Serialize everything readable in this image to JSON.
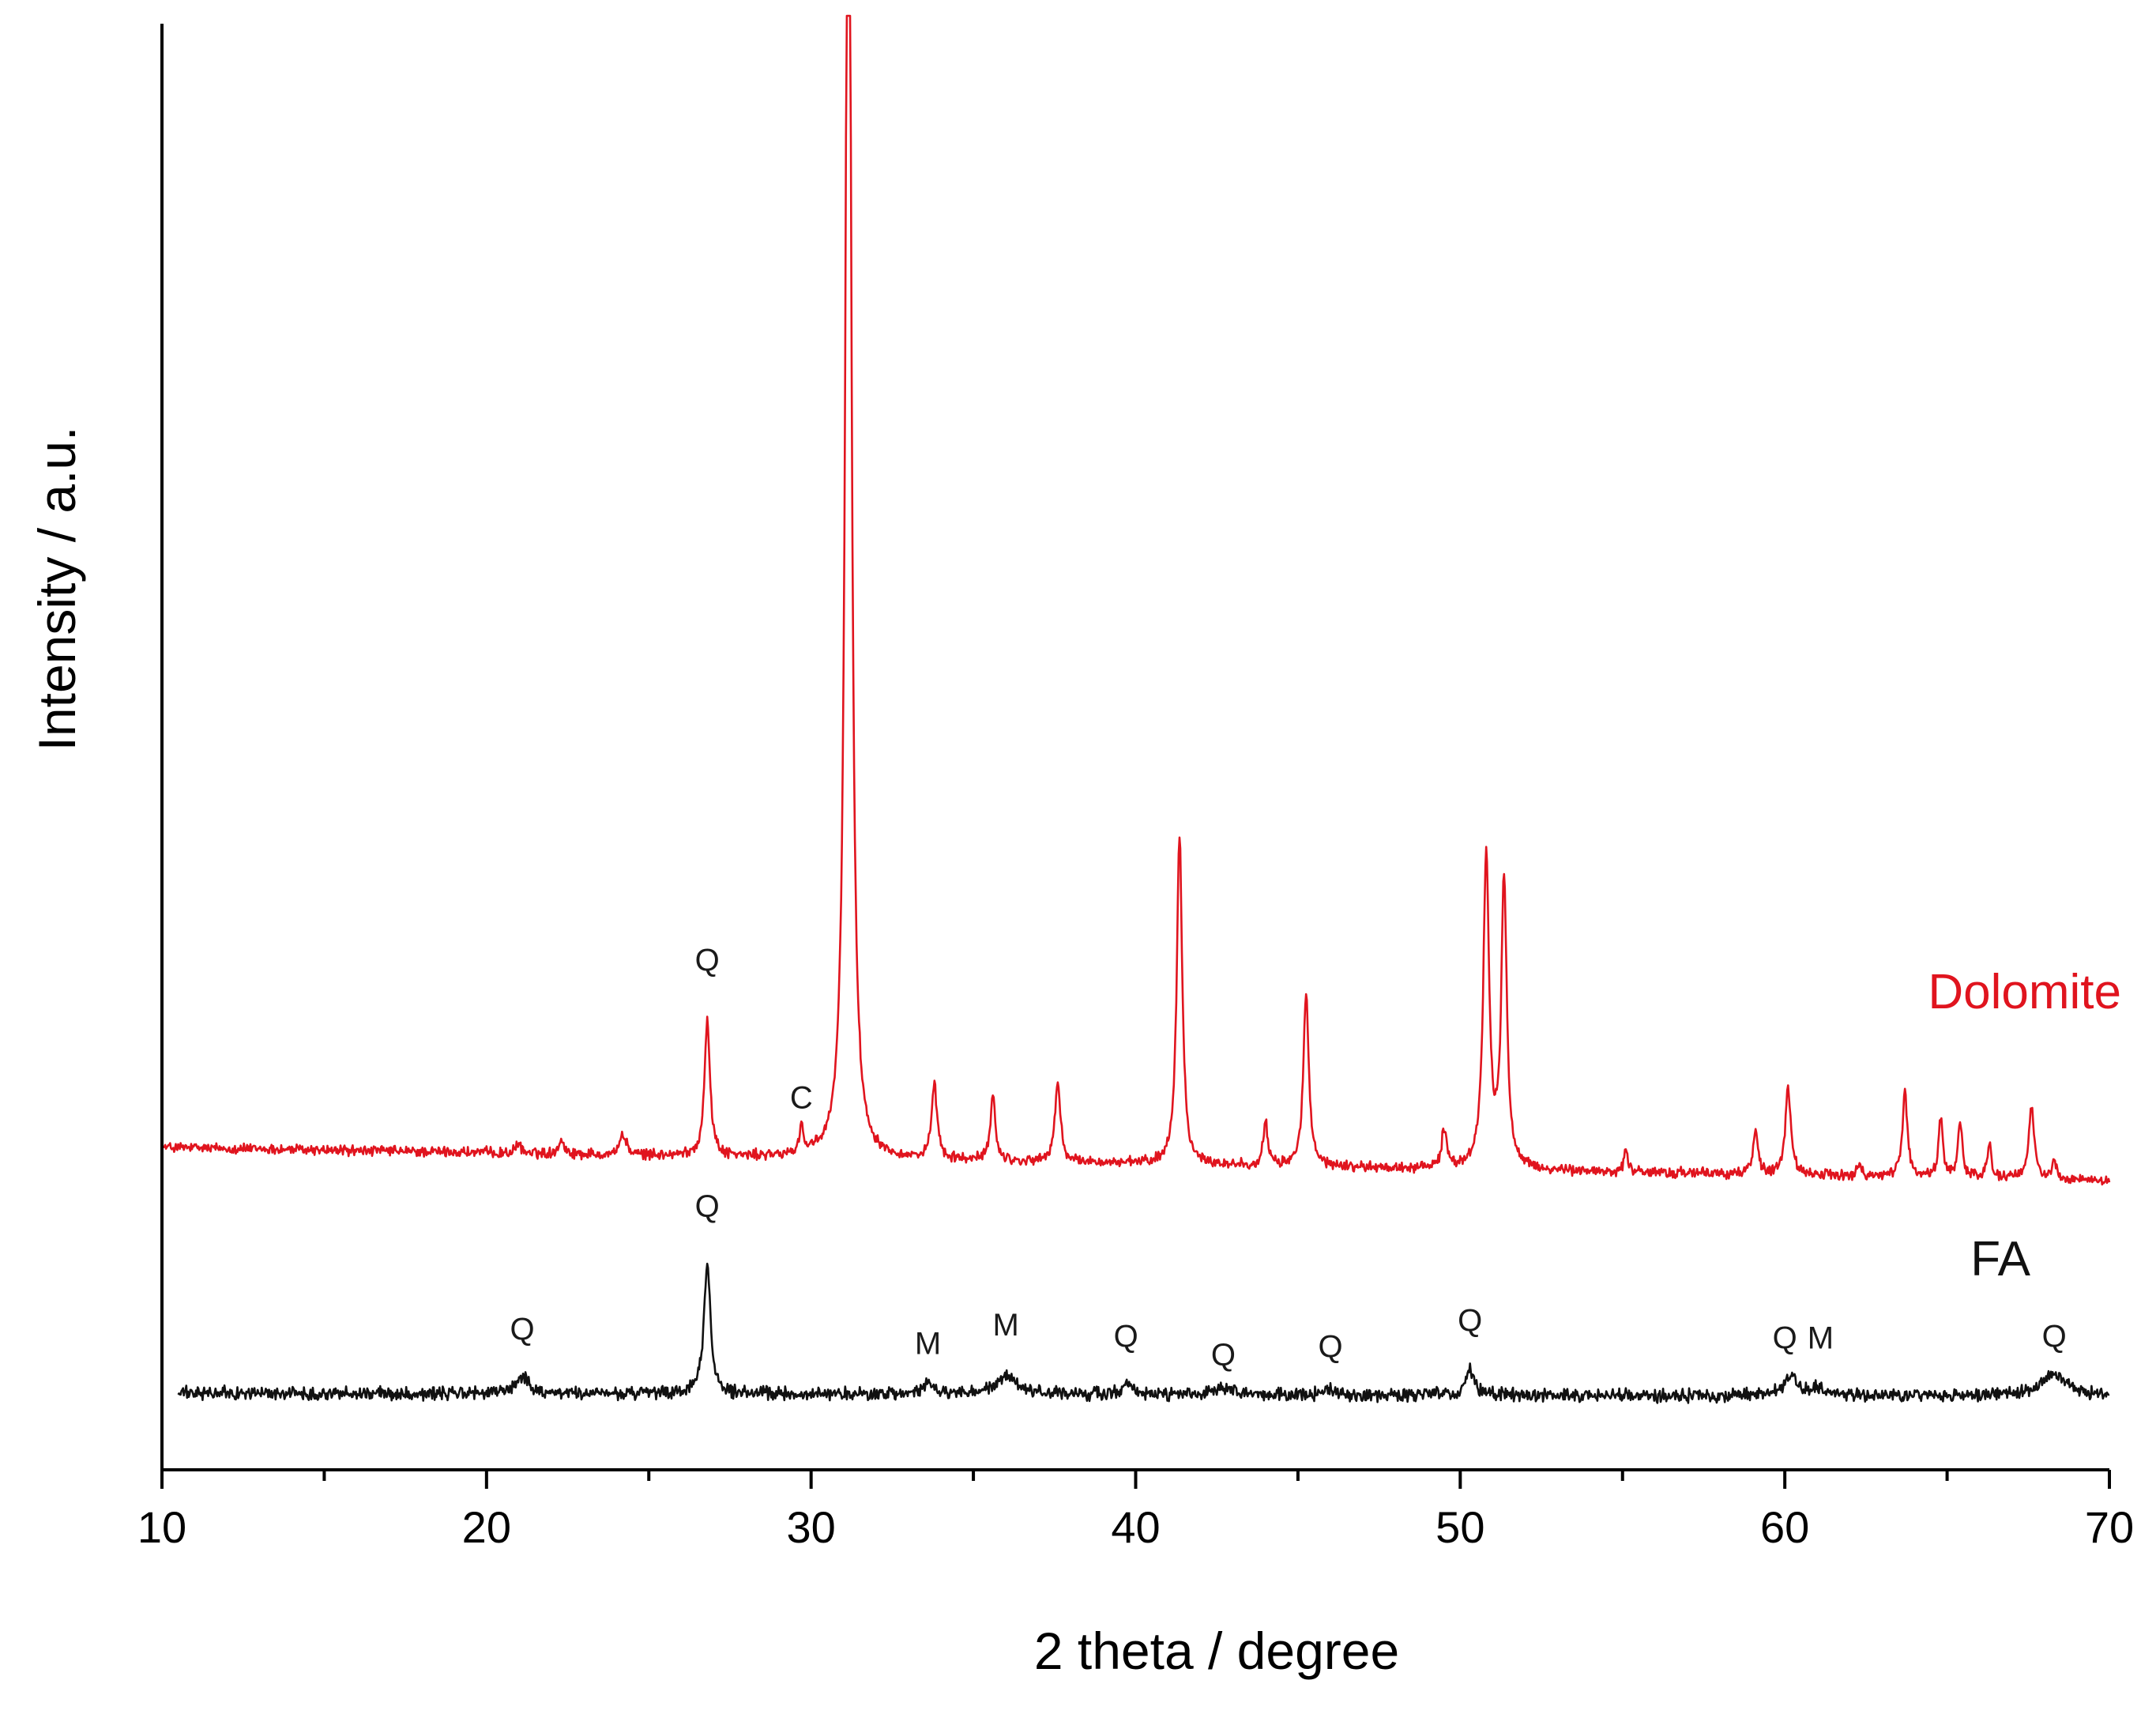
{
  "chart_data": {
    "type": "line",
    "xlabel": "2 theta / degree",
    "ylabel": "Intensity / a.u.",
    "xlim": [
      10,
      70
    ],
    "ylim": [
      0,
      100
    ],
    "x_ticks": [
      "10",
      "20",
      "30",
      "40",
      "50",
      "60",
      "70"
    ],
    "grid": false,
    "legend": "inline labels at right",
    "series": [
      {
        "name": "Dolomite",
        "color": "#e0141e",
        "baseline_left": 22.3,
        "baseline_right": 20.0,
        "noise": 0.45,
        "peaks": [
          {
            "x": 21.0,
            "y": 0.6,
            "w": 0.1
          },
          {
            "x": 22.3,
            "y": 1.0,
            "w": 0.1
          },
          {
            "x": 24.2,
            "y": 1.4,
            "w": 0.12
          },
          {
            "x": 26.8,
            "y": 9.5,
            "w": 0.1
          },
          {
            "x": 29.7,
            "y": 2.0,
            "w": 0.07
          },
          {
            "x": 31.15,
            "y": 110.0,
            "w": 0.1
          },
          {
            "x": 33.8,
            "y": 5.0,
            "w": 0.1
          },
          {
            "x": 35.6,
            "y": 4.5,
            "w": 0.09
          },
          {
            "x": 37.6,
            "y": 5.5,
            "w": 0.1
          },
          {
            "x": 41.35,
            "y": 23.0,
            "w": 0.1
          },
          {
            "x": 44.0,
            "y": 3.0,
            "w": 0.08
          },
          {
            "x": 45.25,
            "y": 12.0,
            "w": 0.1
          },
          {
            "x": 49.5,
            "y": 2.7,
            "w": 0.09
          },
          {
            "x": 50.8,
            "y": 21.5,
            "w": 0.11
          },
          {
            "x": 51.35,
            "y": 20.0,
            "w": 0.1
          },
          {
            "x": 55.1,
            "y": 1.7,
            "w": 0.06
          },
          {
            "x": 59.1,
            "y": 3.0,
            "w": 0.09
          },
          {
            "x": 60.1,
            "y": 6.0,
            "w": 0.1
          },
          {
            "x": 62.3,
            "y": 1.1,
            "w": 0.06
          },
          {
            "x": 63.7,
            "y": 6.0,
            "w": 0.09
          },
          {
            "x": 64.8,
            "y": 4.0,
            "w": 0.08
          },
          {
            "x": 65.4,
            "y": 3.8,
            "w": 0.08
          },
          {
            "x": 66.3,
            "y": 2.5,
            "w": 0.07
          },
          {
            "x": 67.6,
            "y": 5.0,
            "w": 0.1
          },
          {
            "x": 68.3,
            "y": 1.3,
            "w": 0.07
          }
        ],
        "annotations": [
          {
            "label": "Q",
            "x": 26.8,
            "y": 34.5
          },
          {
            "label": "C",
            "x": 29.7,
            "y": 25.0
          }
        ]
      },
      {
        "name": "FA",
        "color": "#111111",
        "baseline_left": 5.3,
        "baseline_right": 5.1,
        "noise": 0.55,
        "peaks": [
          {
            "x": 21.1,
            "y": 1.2,
            "w": 0.25
          },
          {
            "x": 26.8,
            "y": 9.0,
            "w": 0.12
          },
          {
            "x": 33.6,
            "y": 0.7,
            "w": 0.18
          },
          {
            "x": 36.0,
            "y": 1.2,
            "w": 0.4
          },
          {
            "x": 39.7,
            "y": 0.9,
            "w": 0.15
          },
          {
            "x": 42.7,
            "y": 0.4,
            "w": 0.25
          },
          {
            "x": 46.0,
            "y": 0.4,
            "w": 0.15
          },
          {
            "x": 50.3,
            "y": 1.9,
            "w": 0.15
          },
          {
            "x": 60.2,
            "y": 1.3,
            "w": 0.25
          },
          {
            "x": 61.0,
            "y": 0.5,
            "w": 0.2
          },
          {
            "x": 68.3,
            "y": 1.5,
            "w": 0.5
          }
        ],
        "annotations": [
          {
            "label": "Q",
            "x": 26.8,
            "y": 17.5
          },
          {
            "label": "Q",
            "x": 21.1,
            "y": 9.0
          },
          {
            "label": "M",
            "x": 33.6,
            "y": 8.0
          },
          {
            "label": "M",
            "x": 36.0,
            "y": 9.3
          },
          {
            "label": "Q",
            "x": 39.7,
            "y": 8.5
          },
          {
            "label": "Q",
            "x": 42.7,
            "y": 7.2
          },
          {
            "label": "Q",
            "x": 46.0,
            "y": 7.8
          },
          {
            "label": "Q",
            "x": 50.3,
            "y": 9.6
          },
          {
            "label": "Q",
            "x": 60.0,
            "y": 8.4
          },
          {
            "label": "M",
            "x": 61.1,
            "y": 8.4
          },
          {
            "label": "Q",
            "x": 68.3,
            "y": 8.5
          }
        ]
      }
    ]
  }
}
